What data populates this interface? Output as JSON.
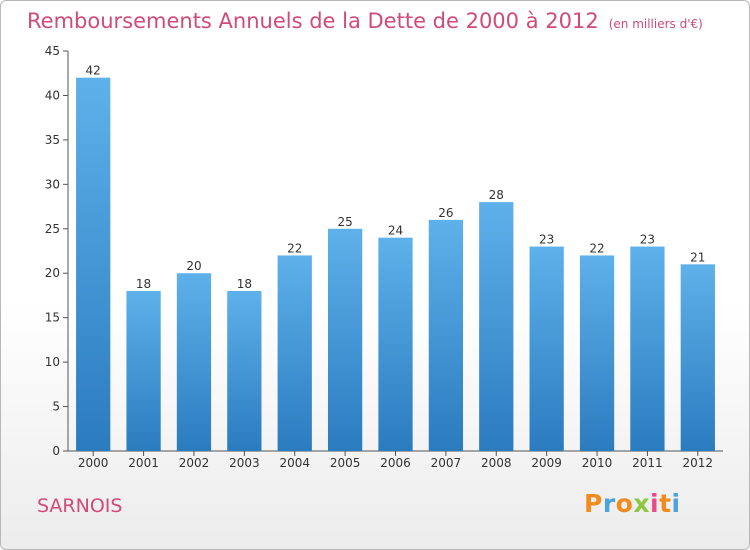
{
  "title": "Remboursements Annuels de la Dette de 2000 à 2012",
  "unit": "(en milliers d'€)",
  "place": "SARNOIS",
  "logo": {
    "letters": [
      "P",
      "r",
      "o",
      "x",
      "i",
      "t",
      "i"
    ],
    "colors": [
      "#f28b1e",
      "#4aa3df",
      "#f28b1e",
      "#8dc63f",
      "#e94b8a",
      "#f28b1e",
      "#4aa3df"
    ]
  },
  "colors": {
    "bar_top": "#5eb1ea",
    "bar_bottom": "#2b7bbf",
    "title": "#d24a76",
    "axis": "#555555"
  },
  "chart_data": {
    "type": "bar",
    "categories": [
      "2000",
      "2001",
      "2002",
      "2003",
      "2004",
      "2005",
      "2006",
      "2007",
      "2008",
      "2009",
      "2010",
      "2011",
      "2012"
    ],
    "values": [
      42,
      18,
      20,
      18,
      22,
      25,
      24,
      26,
      28,
      23,
      22,
      23,
      21
    ],
    "yticks": [
      0,
      5,
      10,
      15,
      20,
      25,
      30,
      35,
      40,
      45
    ],
    "ylim": [
      0,
      45
    ],
    "grid": false,
    "legend": "none"
  }
}
